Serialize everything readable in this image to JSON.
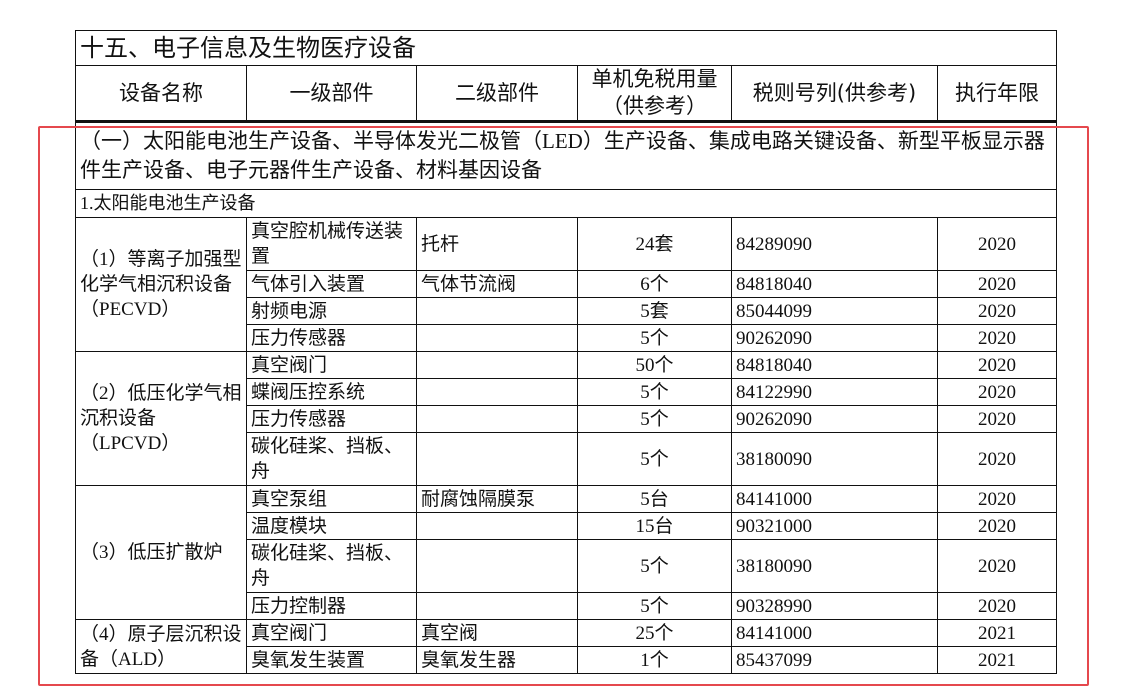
{
  "title": "十五、电子信息及生物医疗设备",
  "headers": [
    "设备名称",
    "一级部件",
    "二级部件",
    "单机免税用量（供参考）",
    "税则号列(供参考)",
    "执行年限"
  ],
  "section": "（一）太阳能电池生产设备、半导体发光二极管（LED）生产设备、集成电路关键设备、新型平板显示器件生产设备、电子元器件生产设备、材料基因设备",
  "subsection": "1.太阳能电池生产设备",
  "groups": [
    {
      "name": "（1）等离子加强型化学气相沉积设备（PECVD）",
      "rows": [
        [
          "真空腔机械传送装置",
          "托杆",
          "24套",
          "84289090",
          "2020"
        ],
        [
          "气体引入装置",
          "气体节流阀",
          "6个",
          "84818040",
          "2020"
        ],
        [
          "射频电源",
          "",
          "5套",
          "85044099",
          "2020"
        ],
        [
          "压力传感器",
          "",
          "5个",
          "90262090",
          "2020"
        ]
      ]
    },
    {
      "name": "（2）低压化学气相沉积设备（LPCVD）",
      "rows": [
        [
          "真空阀门",
          "",
          "50个",
          "84818040",
          "2020"
        ],
        [
          "蝶阀压控系统",
          "",
          "5个",
          "84122990",
          "2020"
        ],
        [
          "压力传感器",
          "",
          "5个",
          "90262090",
          "2020"
        ],
        [
          "碳化硅桨、挡板、舟",
          "",
          "5个",
          "38180090",
          "2020"
        ]
      ]
    },
    {
      "name": "（3）低压扩散炉",
      "rows": [
        [
          "真空泵组",
          "耐腐蚀隔膜泵",
          "5台",
          "84141000",
          "2020"
        ],
        [
          "温度模块",
          "",
          "15台",
          "90321000",
          "2020"
        ],
        [
          "碳化硅桨、挡板、舟",
          "",
          "5个",
          "38180090",
          "2020"
        ],
        [
          "压力控制器",
          "",
          "5个",
          "90328990",
          "2020"
        ]
      ]
    },
    {
      "name": "（4）原子层沉积设备（ALD）",
      "rows": [
        [
          "真空阀门",
          "真空阀",
          "25个",
          "84141000",
          "2021"
        ],
        [
          "臭氧发生装置",
          "臭氧发生器",
          "1个",
          "85437099",
          "2021"
        ]
      ]
    }
  ],
  "highlight_color": "#e5484d"
}
